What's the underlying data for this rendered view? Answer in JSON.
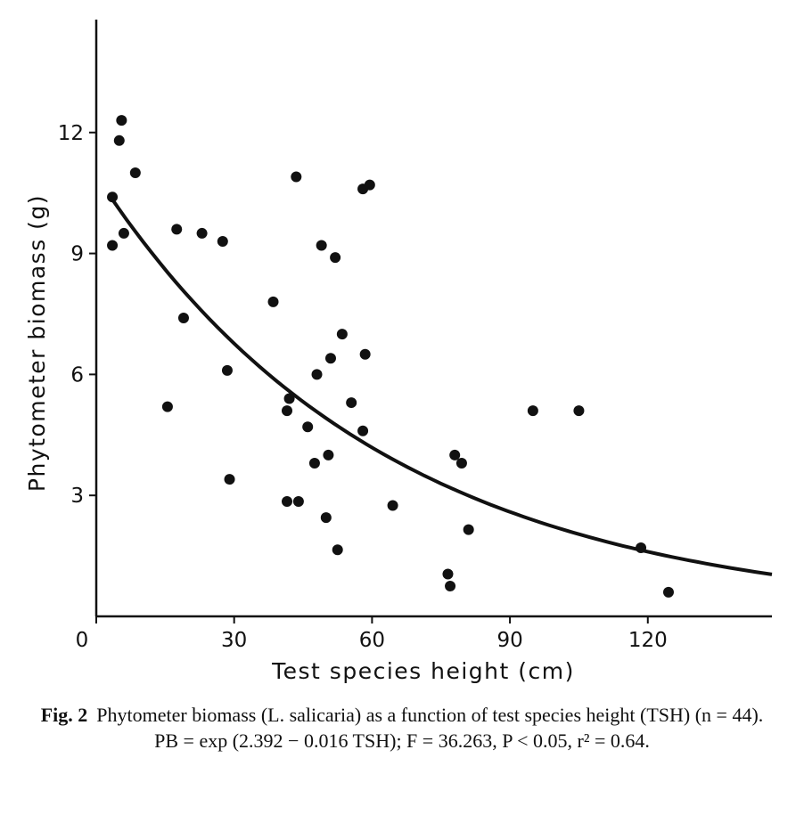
{
  "chart_data": {
    "type": "scatter",
    "xlabel": "Test species height (cm)",
    "ylabel": "Phytometer biomass (g)",
    "xlim": [
      0,
      147
    ],
    "ylim": [
      0,
      14.8
    ],
    "xticks": [
      0,
      30,
      60,
      90,
      120
    ],
    "yticks": [
      3,
      6,
      9,
      12
    ],
    "grid": false,
    "legend": "none",
    "point_color": "#111111",
    "points": [
      [
        3.5,
        10.4
      ],
      [
        3.5,
        9.2
      ],
      [
        5.0,
        11.8
      ],
      [
        5.5,
        12.3
      ],
      [
        6.0,
        9.5
      ],
      [
        8.5,
        11.0
      ],
      [
        15.5,
        5.2
      ],
      [
        17.5,
        9.6
      ],
      [
        19.0,
        7.4
      ],
      [
        23.0,
        9.5
      ],
      [
        27.5,
        9.3
      ],
      [
        28.5,
        6.1
      ],
      [
        29.0,
        3.4
      ],
      [
        38.5,
        7.8
      ],
      [
        41.5,
        5.1
      ],
      [
        41.5,
        2.85
      ],
      [
        42.0,
        5.4
      ],
      [
        43.5,
        10.9
      ],
      [
        44.0,
        2.85
      ],
      [
        46.0,
        4.7
      ],
      [
        47.5,
        3.8
      ],
      [
        48.0,
        6.0
      ],
      [
        49.0,
        9.2
      ],
      [
        50.0,
        2.45
      ],
      [
        50.5,
        4.0
      ],
      [
        51.0,
        6.4
      ],
      [
        52.0,
        8.9
      ],
      [
        52.5,
        1.65
      ],
      [
        53.5,
        7.0
      ],
      [
        55.5,
        5.3
      ],
      [
        58.0,
        4.6
      ],
      [
        58.0,
        10.6
      ],
      [
        58.5,
        6.5
      ],
      [
        59.5,
        10.7
      ],
      [
        64.5,
        2.75
      ],
      [
        76.5,
        1.05
      ],
      [
        77.0,
        0.75
      ],
      [
        78.0,
        4.0
      ],
      [
        79.5,
        3.8
      ],
      [
        81.0,
        2.15
      ],
      [
        95.0,
        5.1
      ],
      [
        105.0,
        5.1
      ],
      [
        118.5,
        1.7
      ],
      [
        124.5,
        0.6
      ]
    ],
    "fit": {
      "label": "PB = exp (2.392 − 0.016 TSH)",
      "intercept": 2.392,
      "slope": -0.016,
      "x_range": [
        3,
        147
      ]
    }
  },
  "caption": {
    "fig_label": "Fig. 2",
    "text": "Phytometer biomass (L. salicaria) as a function of test species height (TSH) (n = 44). PB = exp (2.392 − 0.016 TSH); F = 36.263, P < 0.05, r² = 0.64."
  }
}
